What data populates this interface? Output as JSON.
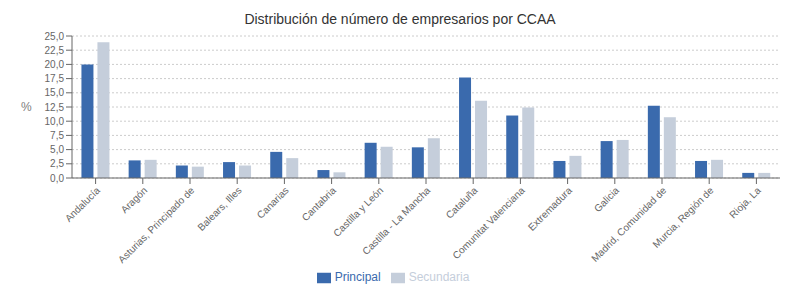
{
  "chart_data": {
    "type": "bar",
    "title": "Distribución de número de empresarios por CCAA",
    "categories": [
      "Andalucía",
      "Aragón",
      "Asturias, Principado de",
      "Balears, Illes",
      "Canarias",
      "Cantabria",
      "Castilla y León",
      "Castilla - La Mancha",
      "Cataluña",
      "Comunitat Valenciana",
      "Extremadura",
      "Galicia",
      "Madrid, Comunidad de",
      "Murcia, Región de",
      "Rioja, La"
    ],
    "series": [
      {
        "name": "Principal",
        "color": "#3A6AAD",
        "values": [
          20.0,
          3.1,
          2.2,
          2.8,
          4.6,
          1.4,
          6.2,
          5.4,
          17.7,
          11.0,
          3.0,
          6.5,
          12.7,
          3.0,
          0.9
        ]
      },
      {
        "name": "Secundaria",
        "color": "#C5CEDB",
        "values": [
          23.9,
          3.2,
          2.0,
          2.2,
          3.5,
          1.0,
          5.5,
          7.0,
          13.6,
          12.4,
          3.9,
          6.7,
          10.7,
          3.2,
          0.9
        ]
      }
    ],
    "ylabel": "%",
    "ylim": [
      0,
      25
    ],
    "yticks": [
      {
        "value": 0.0,
        "label": "0,0"
      },
      {
        "value": 2.5,
        "label": "2,5"
      },
      {
        "value": 5.0,
        "label": "5,0"
      },
      {
        "value": 7.5,
        "label": "7,5"
      },
      {
        "value": 10.0,
        "label": "10,0"
      },
      {
        "value": 12.5,
        "label": "12,5"
      },
      {
        "value": 15.0,
        "label": "15,0"
      },
      {
        "value": 17.5,
        "label": "17,5"
      },
      {
        "value": 20.0,
        "label": "20,0"
      },
      {
        "value": 22.5,
        "label": "22,5"
      },
      {
        "value": 25.0,
        "label": "25,0"
      }
    ],
    "grid": true,
    "legend": "bottom"
  }
}
